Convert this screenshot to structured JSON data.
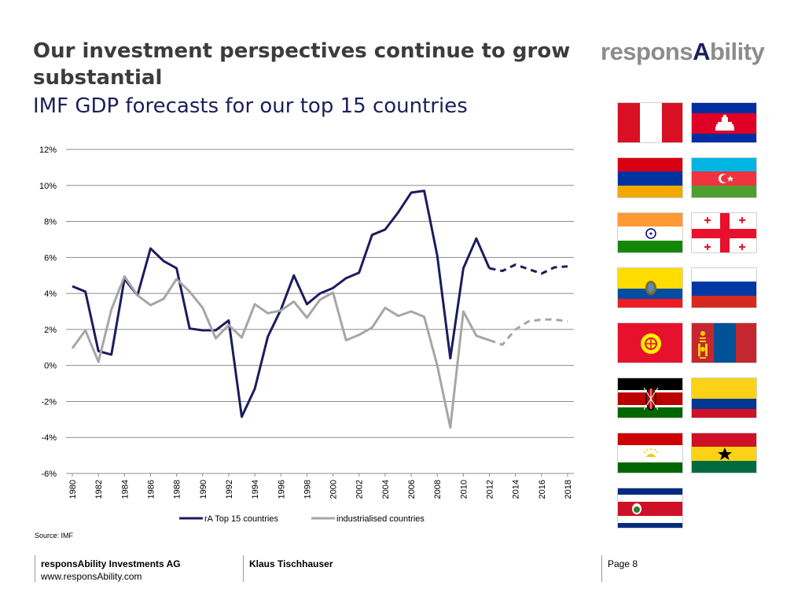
{
  "header": {
    "title": "Our investment perspectives continue to grow substantial",
    "subtitle": "IMF GDP forecasts for our top 15 countries",
    "logo_prefix": "respons",
    "logo_accent": "A",
    "logo_suffix": "bility"
  },
  "chart_data": {
    "type": "line",
    "x": [
      1980,
      1981,
      1982,
      1983,
      1984,
      1985,
      1986,
      1987,
      1988,
      1989,
      1990,
      1991,
      1992,
      1993,
      1994,
      1995,
      1996,
      1997,
      1998,
      1999,
      2000,
      2001,
      2002,
      2003,
      2004,
      2005,
      2006,
      2007,
      2008,
      2009,
      2010,
      2011,
      2012,
      2013,
      2014,
      2015,
      2016,
      2017,
      2018
    ],
    "x_tick_labels": [
      "1980",
      "1982",
      "1984",
      "1986",
      "1988",
      "1990",
      "1992",
      "1994",
      "1996",
      "1998",
      "2000",
      "2002",
      "2004",
      "2006",
      "2008",
      "2010",
      "2012",
      "2014",
      "2016",
      "2018"
    ],
    "y_tick_labels": [
      "12%",
      "10%",
      "8%",
      "6%",
      "4%",
      "2%",
      "0%",
      "-2%",
      "-4%",
      "-6%"
    ],
    "ylim": [
      -6,
      12
    ],
    "forecast_start_year": 2012,
    "grid": "horizontal",
    "legend_position": "bottom",
    "series": [
      {
        "name": "rA Top 15 countries",
        "color": "#1c1c5e",
        "values": [
          4.4,
          4.1,
          0.8,
          0.6,
          4.8,
          3.9,
          6.5,
          5.8,
          5.4,
          2.05,
          1.95,
          1.95,
          2.5,
          -2.85,
          -1.3,
          1.6,
          3.1,
          5.0,
          3.4,
          4.0,
          4.3,
          4.85,
          5.15,
          7.25,
          7.55,
          8.5,
          9.6,
          9.7,
          6.1,
          0.4,
          5.4,
          7.05,
          5.4,
          5.25,
          5.6,
          5.35,
          5.1,
          5.45,
          5.5
        ]
      },
      {
        "name": "industrialised countries",
        "color": "#a6a6a6",
        "values": [
          0.95,
          1.95,
          0.2,
          3.1,
          4.95,
          3.9,
          3.35,
          3.7,
          4.8,
          4.1,
          3.2,
          1.5,
          2.25,
          1.55,
          3.4,
          2.9,
          3.05,
          3.55,
          2.65,
          3.65,
          4.05,
          1.4,
          1.7,
          2.1,
          3.2,
          2.75,
          3.0,
          2.7,
          0.0,
          -3.45,
          3.0,
          1.65,
          1.4,
          1.15,
          2.0,
          2.45,
          2.55,
          2.55,
          2.45
        ]
      }
    ]
  },
  "source": "Source: IMF",
  "footer": {
    "company": "responsAbility Investments AG",
    "url": "www.responsAbility.com",
    "author": "Klaus Tischhauser",
    "page": "Page 8"
  },
  "flags": [
    "peru-flag",
    "cambodia-flag",
    "armenia-flag",
    "azerbaijan-flag",
    "india-flag",
    "georgia-flag",
    "ecuador-flag",
    "russia-flag",
    "kyrgyzstan-flag",
    "mongolia-flag",
    "kenya-flag",
    "colombia-flag",
    "tajikistan-flag",
    "ghana-flag",
    "costa-rica-flag"
  ]
}
